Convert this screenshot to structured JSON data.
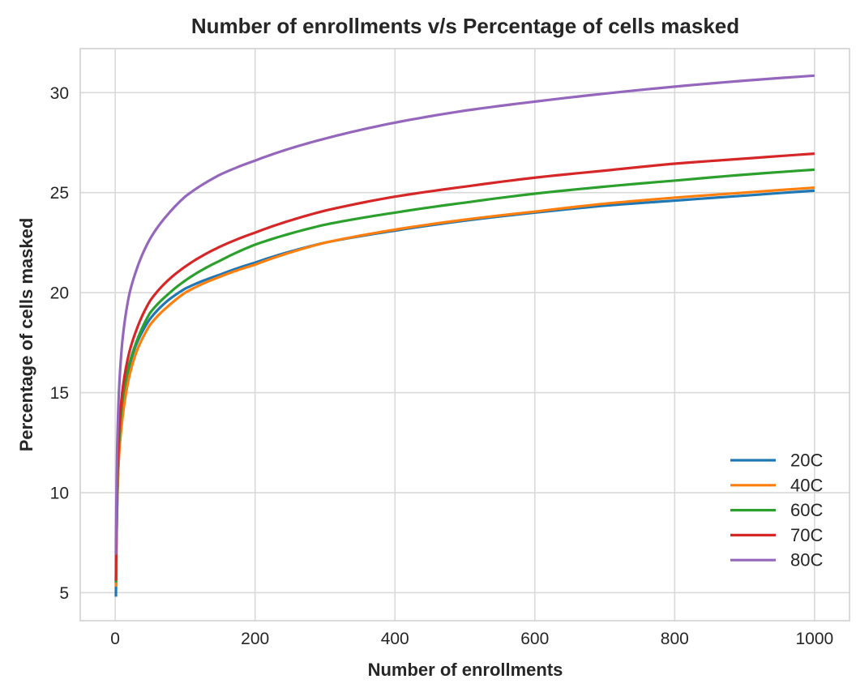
{
  "chart_data": {
    "type": "line",
    "title": "Number of enrollments v/s Percentage of cells masked",
    "xlabel": "Number of enrollments",
    "ylabel": "Percentage of cells masked",
    "xlim": [
      -50,
      1050
    ],
    "ylim": [
      3.6,
      32.2
    ],
    "x_ticks": [
      0,
      200,
      400,
      600,
      800,
      1000
    ],
    "x_tick_labels": [
      "0",
      "200",
      "400",
      "600",
      "800",
      "1000"
    ],
    "y_ticks": [
      5,
      10,
      15,
      20,
      25,
      30
    ],
    "y_tick_labels": [
      "5",
      "10",
      "15",
      "20",
      "25",
      "30"
    ],
    "grid": true,
    "legend_position": "lower-right",
    "x": [
      1,
      3,
      5,
      10,
      20,
      30,
      50,
      75,
      100,
      150,
      200,
      300,
      400,
      500,
      600,
      700,
      800,
      900,
      1000
    ],
    "series": [
      {
        "name": "20C",
        "color": "#1f77b4",
        "values": [
          4.8,
          9.6,
          11.7,
          14.0,
          16.3,
          17.4,
          18.7,
          19.6,
          20.2,
          20.9,
          21.5,
          22.5,
          23.1,
          23.6,
          24.0,
          24.35,
          24.6,
          24.85,
          25.1
        ]
      },
      {
        "name": "40C",
        "color": "#ff7f0e",
        "values": [
          5.3,
          9.8,
          11.6,
          13.6,
          15.8,
          17.0,
          18.4,
          19.3,
          20.0,
          20.8,
          21.4,
          22.5,
          23.15,
          23.65,
          24.05,
          24.45,
          24.75,
          25.0,
          25.25
        ]
      },
      {
        "name": "60C",
        "color": "#2ca02c",
        "values": [
          5.5,
          10.4,
          12.3,
          14.5,
          16.4,
          17.5,
          19.0,
          19.9,
          20.6,
          21.6,
          22.4,
          23.4,
          24.0,
          24.5,
          24.95,
          25.3,
          25.6,
          25.9,
          26.15
        ]
      },
      {
        "name": "70C",
        "color": "#d62728",
        "values": [
          5.6,
          10.8,
          12.8,
          15.0,
          17.0,
          18.1,
          19.6,
          20.6,
          21.3,
          22.3,
          23.0,
          24.1,
          24.8,
          25.3,
          25.75,
          26.1,
          26.45,
          26.7,
          26.95
        ]
      },
      {
        "name": "80C",
        "color": "#9467bd",
        "values": [
          6.9,
          12.5,
          14.8,
          17.5,
          19.9,
          21.1,
          22.7,
          23.9,
          24.8,
          25.9,
          26.6,
          27.7,
          28.5,
          29.1,
          29.55,
          29.95,
          30.3,
          30.6,
          30.85
        ]
      }
    ]
  }
}
